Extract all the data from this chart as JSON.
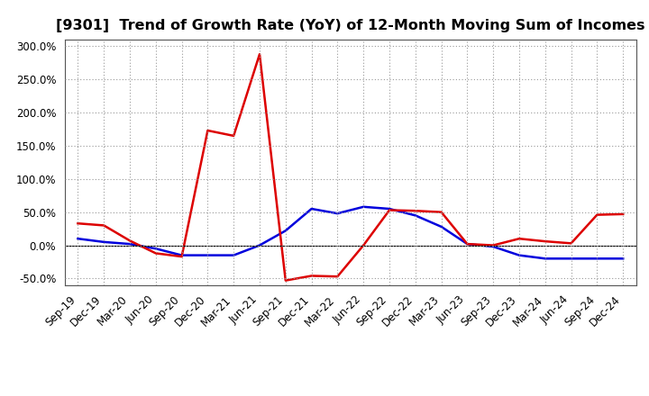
{
  "title": "[9301]  Trend of Growth Rate (YoY) of 12-Month Moving Sum of Incomes",
  "x_labels": [
    "Sep-19",
    "Dec-19",
    "Mar-20",
    "Jun-20",
    "Sep-20",
    "Dec-20",
    "Mar-21",
    "Jun-21",
    "Sep-21",
    "Dec-21",
    "Mar-22",
    "Jun-22",
    "Sep-22",
    "Dec-22",
    "Mar-23",
    "Jun-23",
    "Sep-23",
    "Dec-23",
    "Mar-24",
    "Jun-24",
    "Sep-24",
    "Dec-24"
  ],
  "ordinary_income": [
    0.1,
    0.05,
    0.02,
    -0.05,
    -0.15,
    -0.15,
    -0.15,
    0.0,
    0.22,
    0.55,
    0.48,
    0.58,
    0.55,
    0.45,
    0.28,
    0.02,
    -0.02,
    -0.15,
    -0.2,
    -0.2,
    -0.2,
    -0.2
  ],
  "net_income": [
    0.33,
    0.3,
    0.07,
    -0.12,
    -0.17,
    1.73,
    1.65,
    2.88,
    -0.53,
    -0.46,
    -0.47,
    0.0,
    0.53,
    0.52,
    0.5,
    0.02,
    0.0,
    0.1,
    0.06,
    0.03,
    0.46,
    0.47
  ],
  "ordinary_color": "#0000dd",
  "net_color": "#dd0000",
  "ylim": [
    -0.6,
    3.1
  ],
  "yticks": [
    -0.5,
    0.0,
    0.5,
    1.0,
    1.5,
    2.0,
    2.5,
    3.0
  ],
  "ytick_labels": [
    "-50.0%",
    "0.0%",
    "50.0%",
    "100.0%",
    "150.0%",
    "200.0%",
    "250.0%",
    "300.0%"
  ],
  "background_color": "#ffffff",
  "grid_color": "#999999",
  "title_fontsize": 11.5,
  "tick_fontsize": 8.5
}
